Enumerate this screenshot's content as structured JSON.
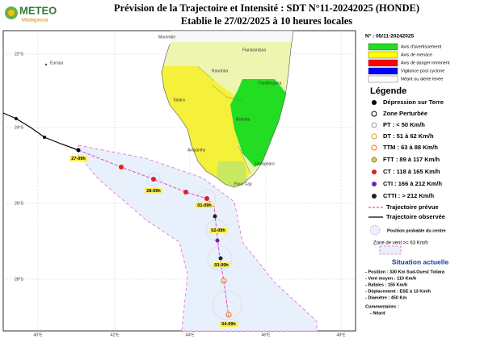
{
  "header": {
    "logo": "METEO",
    "logo_sub": "Madagascar",
    "title": "Prévision de la Trajectoire et Intensité : SDT N°11-20242025 (HONDE)",
    "subtitle": "Etablie le 27/02/2025 à 10 heures locales"
  },
  "map": {
    "lat_labels": [
      "22°S",
      "24°S",
      "26°S",
      "28°S"
    ],
    "lon_labels": [
      "40°E",
      "42°E",
      "44°E",
      "46°E",
      "48°E"
    ],
    "places": [
      "Europa",
      "Morombe",
      "Ranohira",
      "Fianarantsoa",
      "Toliara",
      "Farafangana",
      "Betroka",
      "Ampanihy",
      "Taolagnaro",
      "Faux Cap"
    ],
    "date_labels": [
      "27-09h",
      "28-09h",
      "01-09h",
      "02-09h",
      "03-09h",
      "04-09h"
    ]
  },
  "warnings": {
    "number": "N° : 05/11-20242025",
    "items": [
      "Avis d'avertissement",
      "Avis de menace",
      "Avis de danger imminent",
      "Vigilance post cyclone",
      "Néant ou alerte levée"
    ]
  },
  "legend": {
    "title": "Légende",
    "items": [
      "Dépression sur Terre",
      "Zone Perturbée",
      "PT : < 50 Km/h",
      "DT : 51 à 62 Km/h",
      "TTM : 63 à 88 Km/h",
      "FTT : 89 à 117 Km/h",
      "CT : 118 à 165 Km/h",
      "CTI : 166 à 212 Km/h",
      "CTTI : > 212 Km/h"
    ],
    "forecast_track": "Trajectoire prévue",
    "observed_track": "Trajectoire observée",
    "probable_position": "Position probable du centre",
    "wind_zone": "Zone de vent >= 63 Km/h"
  },
  "situation": {
    "title": "Situation actuelle",
    "lines": [
      "- Position : 330 Km Sud-Ouest Toliara",
      "- Vent moyen : 110 Km/h",
      "- Rafales : 155 Km/h",
      "- Déplacement : ESE à 13 Km/h",
      "- Diamètre : 450 Km"
    ],
    "comments_title": "Commentaires :",
    "comments": "- Néant"
  }
}
